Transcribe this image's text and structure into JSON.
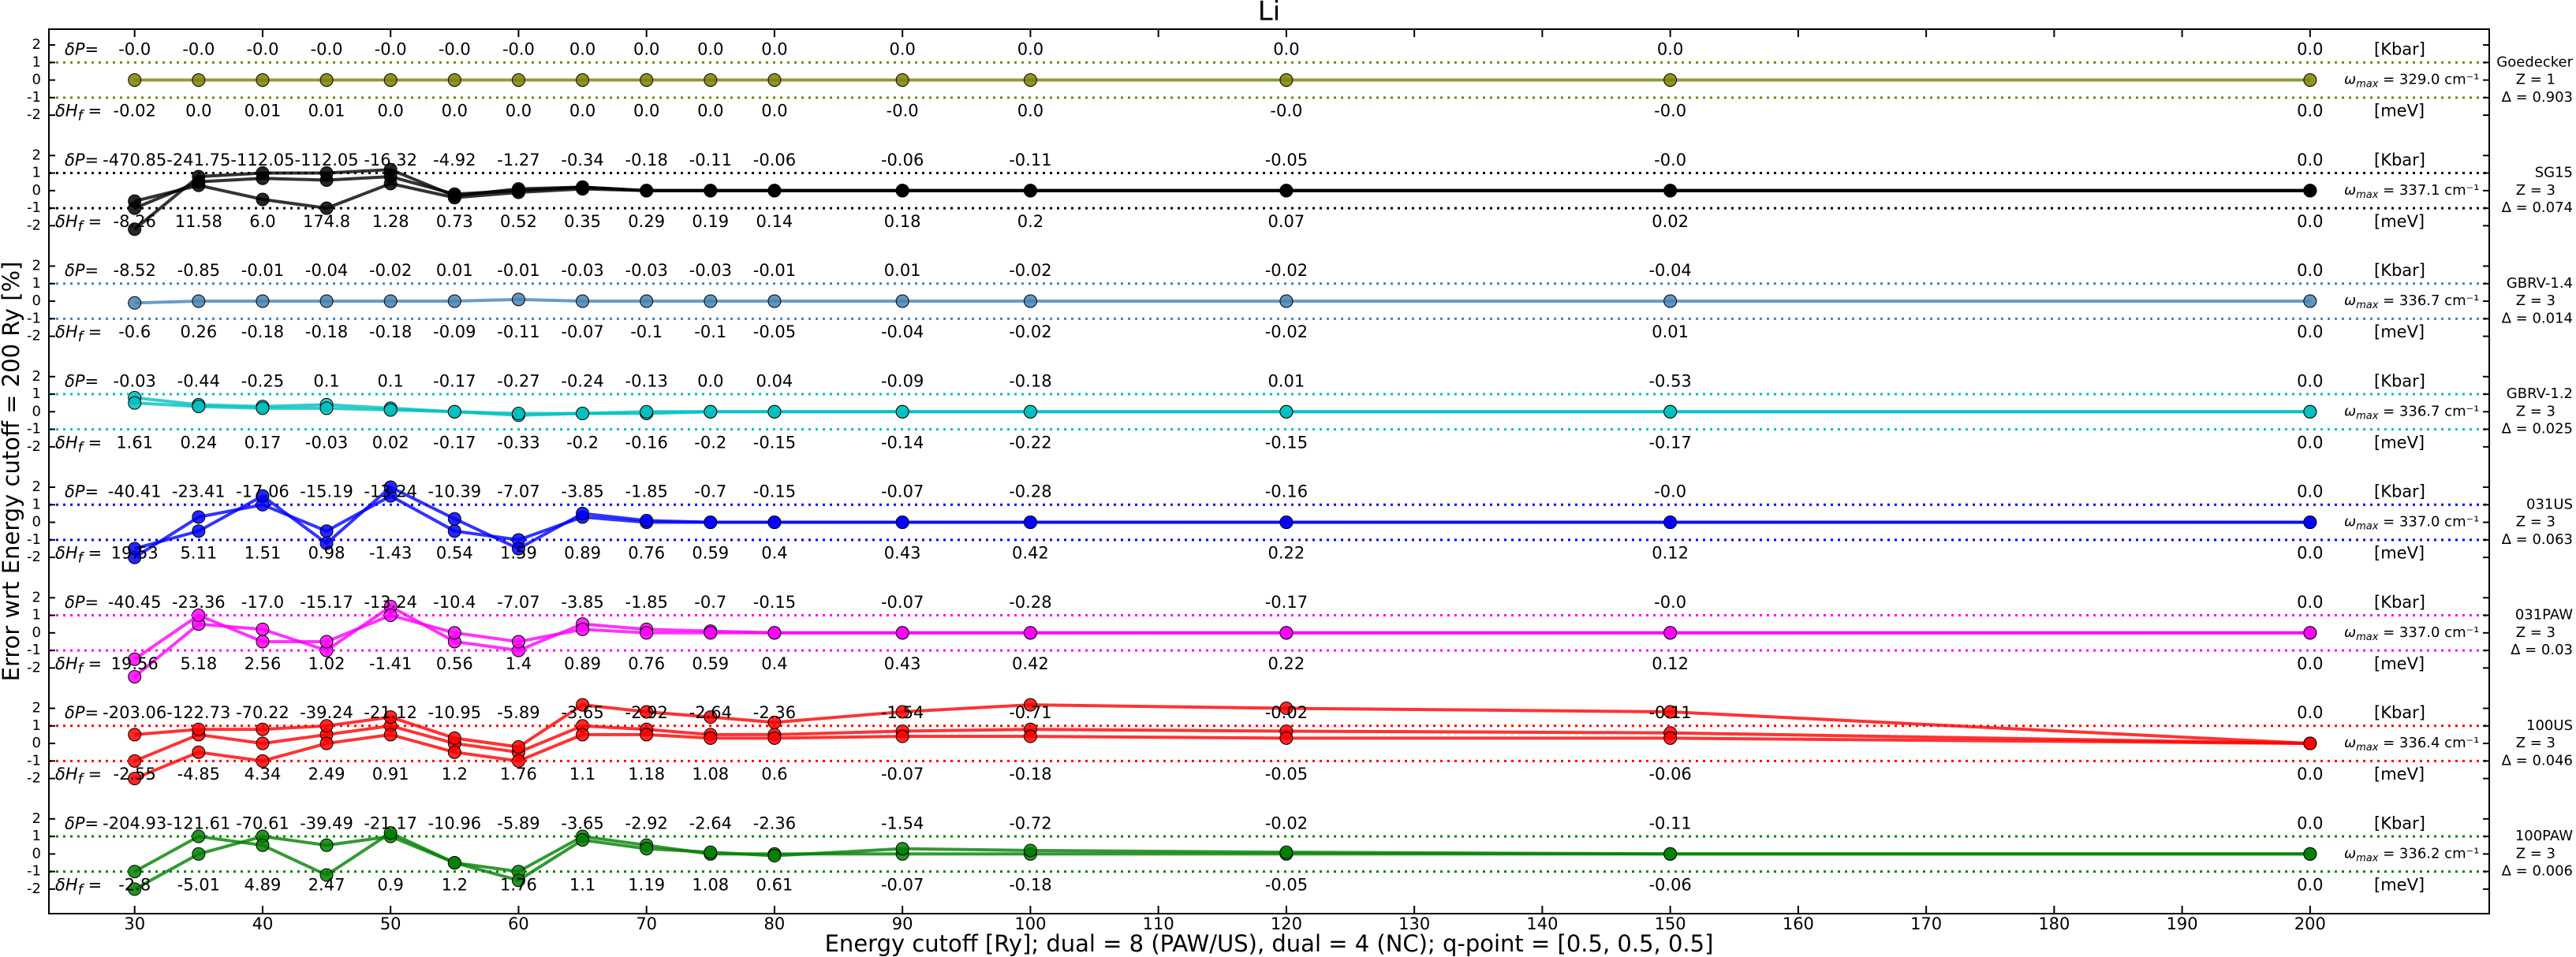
{
  "chart_data": {
    "type": "line",
    "title": "Li",
    "x_label": "Energy cutoff [Ry]; dual = 8 (PAW/US), dual = 4 (NC); q-point = [0.5, 0.5, 0.5]",
    "y_label": "Error wrt Energy cutoff = 200 Ry [%]",
    "x": [
      30,
      35,
      40,
      45,
      50,
      55,
      60,
      65,
      70,
      75,
      80,
      90,
      100,
      120,
      150,
      200
    ],
    "xlim": [
      23.3,
      214
    ],
    "xticks": [
      30,
      40,
      50,
      60,
      70,
      80,
      90,
      100,
      110,
      120,
      130,
      140,
      150,
      160,
      170,
      180,
      190,
      200
    ],
    "ylim": [
      -3.4,
      2.9
    ],
    "yticks": [
      -2,
      -1,
      0,
      1,
      2
    ],
    "reflines": [
      -1,
      1
    ],
    "dP_label": "δP=",
    "dH_symbol": "δH",
    "dH_sub": "f",
    "dH_eq": " =",
    "omega_symbol": "ω",
    "omega_sub": "max",
    "dP_unit": "[Kbar]",
    "dH_unit": "[meV]",
    "panels": [
      {
        "name": "Goedecker",
        "Z": "Z = 1",
        "delta": "Δ = 0.903",
        "omega": " = 329.0 cm⁻¹",
        "color": "#808000",
        "dP": [
          "-0.0",
          "-0.0",
          "-0.0",
          "-0.0",
          "-0.0",
          "-0.0",
          "-0.0",
          "0.0",
          "0.0",
          "0.0",
          "0.0",
          "0.0",
          "0.0",
          "0.0",
          "0.0",
          "0.0"
        ],
        "dH": [
          "-0.02",
          "0.0",
          "0.01",
          "0.01",
          "0.0",
          "0.0",
          "0.0",
          "0.0",
          "0.0",
          "0.0",
          "0.0",
          "-0.0",
          "0.0",
          "-0.0",
          "-0.0",
          "0.0"
        ],
        "series": [
          {
            "values": [
              0,
              0,
              0,
              0,
              0,
              0,
              0,
              0,
              0,
              0,
              0,
              0,
              0,
              0,
              0,
              0
            ]
          }
        ]
      },
      {
        "name": "SG15",
        "Z": "Z = 3",
        "delta": "Δ = 0.074",
        "omega": " = 337.1 cm⁻¹",
        "color": "#000000",
        "dP": [
          "-470.85",
          "-241.75",
          "-112.05",
          "-112.05",
          "-16.32",
          "-4.92",
          "-1.27",
          "-0.34",
          "-0.18",
          "-0.11",
          "-0.06",
          "-0.06",
          "-0.11",
          "-0.05",
          "-0.0",
          "0.0"
        ],
        "dH": [
          "-8.26",
          "11.58",
          "6.0",
          "174.8",
          "1.28",
          "0.73",
          "0.52",
          "0.35",
          "0.29",
          "0.19",
          "0.14",
          "0.18",
          "0.2",
          "0.07",
          "0.02",
          "0.0"
        ],
        "series": [
          {
            "values": [
              -1,
              0.5,
              0.7,
              0.6,
              0.8,
              -0.2,
              0,
              0.2,
              0,
              0,
              0,
              0,
              0,
              0,
              0,
              0
            ]
          },
          {
            "values": [
              -2.2,
              0.8,
              1,
              1,
              1.2,
              -0.3,
              0.1,
              0.2,
              0,
              0,
              0,
              0,
              0,
              0,
              0,
              0
            ]
          },
          {
            "values": [
              -0.6,
              0.3,
              -0.5,
              -1,
              0.4,
              -0.4,
              -0.1,
              0.1,
              0,
              0,
              0,
              0,
              0,
              0,
              0,
              0
            ]
          }
        ]
      },
      {
        "name": "GBRV-1.4",
        "Z": "Z = 3",
        "delta": "Δ = 0.014",
        "omega": " = 336.7 cm⁻¹",
        "color": "#4682b4",
        "dP": [
          "-8.52",
          "-0.85",
          "-0.01",
          "-0.04",
          "-0.02",
          "0.01",
          "-0.01",
          "-0.03",
          "-0.03",
          "-0.03",
          "-0.01",
          "0.01",
          "-0.02",
          "-0.02",
          "-0.04",
          "0.0"
        ],
        "dH": [
          "-0.6",
          "0.26",
          "-0.18",
          "-0.18",
          "-0.18",
          "-0.09",
          "-0.11",
          "-0.07",
          "-0.1",
          "-0.1",
          "-0.05",
          "-0.04",
          "-0.02",
          "-0.02",
          "0.01",
          "0.0"
        ],
        "series": [
          {
            "values": [
              -0.1,
              0,
              0,
              0,
              0,
              0,
              0.1,
              0,
              0,
              0,
              0,
              0,
              0,
              0,
              0,
              0
            ]
          }
        ]
      },
      {
        "name": "GBRV-1.2",
        "Z": "Z = 3",
        "delta": "Δ = 0.025",
        "omega": " = 336.7 cm⁻¹",
        "color": "#00bfbf",
        "dP": [
          "-0.03",
          "-0.44",
          "-0.25",
          "0.1",
          "0.1",
          "-0.17",
          "-0.27",
          "-0.24",
          "-0.13",
          "0.0",
          "0.04",
          "-0.09",
          "-0.18",
          "0.01",
          "-0.53",
          "0.0"
        ],
        "dH": [
          "1.61",
          "0.24",
          "0.17",
          "-0.03",
          "0.02",
          "-0.17",
          "-0.33",
          "-0.2",
          "-0.16",
          "-0.2",
          "-0.15",
          "-0.14",
          "-0.22",
          "-0.15",
          "-0.17",
          "0.0"
        ],
        "series": [
          {
            "values": [
              0.8,
              0.4,
              0.3,
              0.4,
              0.2,
              0,
              -0.2,
              -0.1,
              -0.1,
              0,
              0,
              0,
              0,
              0,
              0,
              0
            ]
          },
          {
            "values": [
              0.5,
              0.3,
              0.2,
              0.2,
              0.1,
              0,
              -0.1,
              -0.1,
              0,
              0,
              0,
              0,
              0,
              0,
              0,
              0
            ]
          }
        ]
      },
      {
        "name": "031US",
        "Z": "Z = 3",
        "delta": "Δ = 0.063",
        "omega": " = 337.0 cm⁻¹",
        "color": "#0000ff",
        "dP": [
          "-40.41",
          "-23.41",
          "-17.06",
          "-15.19",
          "-13.24",
          "-10.39",
          "-7.07",
          "-3.85",
          "-1.85",
          "-0.7",
          "-0.15",
          "-0.07",
          "-0.28",
          "-0.16",
          "-0.0",
          "0.0"
        ],
        "dH": [
          "19.53",
          "5.11",
          "1.51",
          "0.98",
          "-1.43",
          "0.54",
          "1.59",
          "0.89",
          "0.76",
          "0.59",
          "0.4",
          "0.43",
          "0.42",
          "0.22",
          "0.12",
          "0.0"
        ],
        "series": [
          {
            "values": [
              -2,
              0.3,
              1,
              -0.5,
              1.5,
              -0.5,
              -1,
              0.3,
              0,
              0,
              0,
              0,
              0,
              0,
              0,
              0
            ]
          },
          {
            "values": [
              -1.5,
              -0.5,
              1.5,
              -1.2,
              2,
              0.2,
              -1.5,
              0.5,
              0.1,
              0,
              0,
              0,
              0,
              0,
              0,
              0
            ]
          }
        ]
      },
      {
        "name": "031PAW",
        "Z": "Z = 3",
        "delta": "Δ = 0.03",
        "omega": " = 337.0 cm⁻¹",
        "color": "#ff00ff",
        "dP": [
          "-40.45",
          "-23.36",
          "-17.0",
          "-15.17",
          "-13.24",
          "-10.4",
          "-7.07",
          "-3.85",
          "-1.85",
          "-0.7",
          "-0.15",
          "-0.07",
          "-0.28",
          "-0.17",
          "-0.0",
          "0.0"
        ],
        "dH": [
          "19.56",
          "5.18",
          "2.56",
          "1.02",
          "-1.41",
          "0.56",
          "1.4",
          "0.89",
          "0.76",
          "0.59",
          "0.4",
          "0.43",
          "0.42",
          "0.22",
          "0.12",
          "0.0"
        ],
        "series": [
          {
            "values": [
              -2.5,
              0.5,
              0.2,
              -1,
              1.5,
              -0.5,
              -1,
              0.5,
              0.2,
              0.1,
              0,
              0,
              0,
              0,
              0,
              0
            ]
          },
          {
            "values": [
              -1.5,
              1,
              -0.5,
              -0.5,
              1,
              0,
              -0.5,
              0.2,
              0,
              0,
              0,
              0,
              0,
              0,
              0,
              0
            ]
          }
        ]
      },
      {
        "name": "100US",
        "Z": "Z = 3",
        "delta": "Δ = 0.046",
        "omega": " = 336.4 cm⁻¹",
        "color": "#ff0000",
        "dP": [
          "-203.06",
          "-122.73",
          "-70.22",
          "-39.24",
          "-21.12",
          "-10.95",
          "-5.89",
          "-3.65",
          "-2.92",
          "-2.64",
          "-2.36",
          "-1.54",
          "-0.71",
          "-0.02",
          "-0.11",
          "0.0"
        ],
        "dH": [
          "-2.55",
          "-4.85",
          "4.34",
          "2.49",
          "0.91",
          "1.2",
          "1.76",
          "1.1",
          "1.18",
          "1.08",
          "0.6",
          "-0.07",
          "-0.18",
          "-0.05",
          "-0.06",
          "0.0"
        ],
        "series": [
          {
            "values": [
              -1,
              0.5,
              0,
              0.5,
              1,
              0,
              -0.5,
              1,
              0.8,
              0.5,
              0.5,
              0.7,
              0.8,
              0.7,
              0.6,
              0
            ]
          },
          {
            "values": [
              0.5,
              0.8,
              0.8,
              1,
              1.5,
              0.3,
              -0.2,
              2.2,
              1.8,
              1.5,
              1.2,
              1.8,
              2.2,
              2,
              1.8,
              0
            ]
          },
          {
            "values": [
              -2,
              -0.5,
              -1,
              0,
              0.5,
              -0.5,
              -1,
              0.5,
              0.5,
              0.3,
              0.3,
              0.4,
              0.4,
              0.3,
              0.3,
              0
            ]
          }
        ]
      },
      {
        "name": "100PAW",
        "Z": "Z = 3",
        "delta": "Δ = 0.006",
        "omega": " = 336.2 cm⁻¹",
        "color": "#008000",
        "dP": [
          "-204.93",
          "-121.61",
          "-70.61",
          "-39.49",
          "-21.17",
          "-10.96",
          "-5.89",
          "-3.65",
          "-2.92",
          "-2.64",
          "-2.36",
          "-1.54",
          "-0.72",
          "-0.02",
          "-0.11",
          "0.0"
        ],
        "dH": [
          "-2.8",
          "-5.01",
          "4.89",
          "2.47",
          "0.9",
          "1.2",
          "1.76",
          "1.1",
          "1.19",
          "1.08",
          "0.61",
          "-0.07",
          "-0.18",
          "-0.05",
          "-0.06",
          "0.0"
        ],
        "series": [
          {
            "values": [
              -2,
              0,
              1,
              0.5,
              1,
              -0.5,
              -1,
              1,
              0.5,
              0,
              0,
              0,
              0,
              0,
              0,
              0
            ]
          },
          {
            "values": [
              -1,
              1,
              0.5,
              -1.2,
              1.2,
              -0.5,
              -1.5,
              0.8,
              0.3,
              0.1,
              -0.1,
              0.3,
              0.2,
              0.1,
              0,
              0
            ]
          }
        ]
      }
    ]
  }
}
